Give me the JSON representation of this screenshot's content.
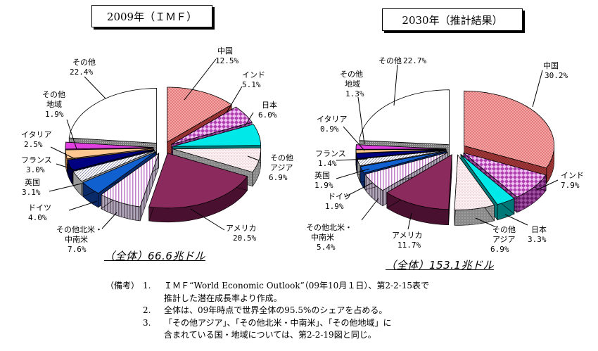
{
  "chart_data": [
    {
      "type": "pie",
      "title": "2009年（ＩＭＦ）",
      "total": "（全体）66.6兆ドル",
      "slices": [
        {
          "name": "中国",
          "value": 12.5,
          "label": "12.5%"
        },
        {
          "name": "インド",
          "value": 5.1,
          "label": "5.1%"
        },
        {
          "name": "日本",
          "value": 6.0,
          "label": "6.0%"
        },
        {
          "name": "その他アジア",
          "value": 6.9,
          "label": "6.9%"
        },
        {
          "name": "アメリカ",
          "value": 20.5,
          "label": "20.5%"
        },
        {
          "name": "その他北米・中南米",
          "value": 7.6,
          "label": "7.6%"
        },
        {
          "name": "ドイツ",
          "value": 4.0,
          "label": "4.0%"
        },
        {
          "name": "英国",
          "value": 3.1,
          "label": "3.1%"
        },
        {
          "name": "フランス",
          "value": 3.0,
          "label": "3.0%"
        },
        {
          "name": "イタリア",
          "value": 2.5,
          "label": "2.5%"
        },
        {
          "name": "その他地域",
          "value": 1.9,
          "label": "1.9%"
        },
        {
          "name": "その他",
          "value": 22.4,
          "label": "22.4%"
        }
      ]
    },
    {
      "type": "pie",
      "title": "2030年（推計結果）",
      "total": "（全体）153.1兆ドル",
      "slices": [
        {
          "name": "中国",
          "value": 30.2,
          "label": "30.2%"
        },
        {
          "name": "インド",
          "value": 7.9,
          "label": "7.9%"
        },
        {
          "name": "日本",
          "value": 3.3,
          "label": "3.3%"
        },
        {
          "name": "その他アジア",
          "value": 6.9,
          "label": "6.9%"
        },
        {
          "name": "アメリカ",
          "value": 11.7,
          "label": "11.7%"
        },
        {
          "name": "その他北米・中南米",
          "value": 5.4,
          "label": "5.4%"
        },
        {
          "name": "ドイツ",
          "value": 1.9,
          "label": "1.9%"
        },
        {
          "name": "英国",
          "value": 1.9,
          "label": "1.9%"
        },
        {
          "name": "フランス",
          "value": 1.4,
          "label": "1.4%"
        },
        {
          "name": "イタリア",
          "value": 0.9,
          "label": "0.9%"
        },
        {
          "name": "その他地域",
          "value": 1.3,
          "label": "1.3%"
        },
        {
          "name": "その他",
          "value": 22.7,
          "label": "22.7%"
        }
      ]
    }
  ],
  "slice_labels": {
    "china": "中国",
    "india": "インド",
    "japan": "日本",
    "other_asia": [
      "その他",
      "アジア"
    ],
    "usa": "アメリカ",
    "other_americas": [
      "その他北米・",
      "中南米"
    ],
    "germany": "ドイツ",
    "uk": "英国",
    "france": "フランス",
    "italy": "イタリア",
    "other_region": [
      "その他",
      "地域"
    ],
    "other": "その他"
  },
  "colors": {
    "china": "#f4a4a4",
    "china_side": "#8b2b2b",
    "india": "#b040b0",
    "india_side": "#6a1a6a",
    "japan": "#00e8e8",
    "japan_side": "#007878",
    "other_asia": "#f8eef0",
    "other_asia_side": "#9a9a9a",
    "usa": "#8b2a5c",
    "usa_side": "#4a1030",
    "other_americas": "#e8c8ec",
    "other_americas_side": "#7a6a80",
    "germany": "#1060d0",
    "germany_side": "#0a2a6a",
    "uk": "#ffffff",
    "uk_side": "#9a9a9a",
    "france": "#000080",
    "france_side": "#000040",
    "italy": "#ffc890",
    "italy_side": "#a07040",
    "other_region": "#e040e0",
    "other_region_side": "#702070",
    "other": "#ffffff",
    "other_side": "#6a6a6a"
  },
  "notes": {
    "prefix": "（備考）",
    "items": [
      {
        "num": "1.",
        "lines": [
          "ＩＭＦ“World Economic Outlook”（09年10月１日）、第2-2-15表で",
          "推計した潜在成長率より作成。"
        ]
      },
      {
        "num": "2.",
        "lines": [
          "全体は、09年時点で世界全体の95.5%のシェアを占める。"
        ]
      },
      {
        "num": "3.",
        "lines": [
          "「その他アジア」、「その他北米・中南米」、「その他地域」に",
          "含まれている国・地域については、第2-2-19図と同じ。"
        ]
      }
    ]
  }
}
